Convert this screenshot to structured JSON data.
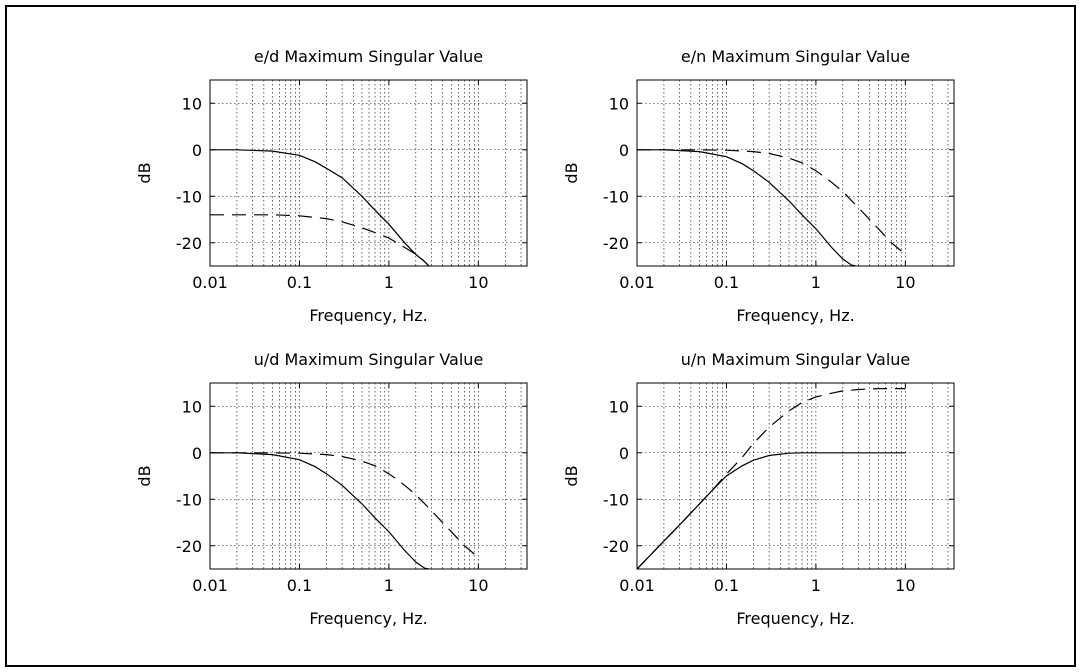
{
  "figure": {
    "border_color": "#000000",
    "background": "#ffffff"
  },
  "chart_data": [
    {
      "type": "line",
      "title": "e/d Maximum Singular Value",
      "xlabel": "Frequency, Hz.",
      "ylabel": "dB",
      "xscale": "log",
      "xlim": [
        0.01,
        35
      ],
      "ylim": [
        -25,
        15
      ],
      "xticks": [
        0.01,
        0.1,
        1,
        10
      ],
      "xticklabels": [
        "0.01",
        "0.1",
        "1",
        "10"
      ],
      "yticks": [
        -20,
        -10,
        0,
        10
      ],
      "yticklabels": [
        "-20",
        "-10",
        "0",
        "10"
      ],
      "grid": true,
      "series": [
        {
          "style": "solid",
          "x": [
            0.01,
            0.02,
            0.05,
            0.1,
            0.15,
            0.2,
            0.3,
            0.5,
            0.7,
            1,
            1.5,
            2,
            2.5,
            2.8
          ],
          "y": [
            0,
            0,
            -0.3,
            -1.2,
            -2.6,
            -4,
            -6,
            -10,
            -13,
            -16,
            -20,
            -22.5,
            -24,
            -25
          ]
        },
        {
          "style": "dashed",
          "x": [
            0.01,
            0.05,
            0.1,
            0.2,
            0.3,
            0.5,
            0.7,
            1,
            1.5,
            2,
            2.5,
            2.8
          ],
          "y": [
            -14,
            -14,
            -14.2,
            -14.8,
            -15.5,
            -16.8,
            -17.8,
            -19,
            -21,
            -22.5,
            -24,
            -25
          ]
        }
      ]
    },
    {
      "type": "line",
      "title": "e/n Maximum Singular Value",
      "xlabel": "Frequency, Hz.",
      "ylabel": "dB",
      "xscale": "log",
      "xlim": [
        0.01,
        35
      ],
      "ylim": [
        -25,
        15
      ],
      "xticks": [
        0.01,
        0.1,
        1,
        10
      ],
      "xticklabels": [
        "0.01",
        "0.1",
        "1",
        "10"
      ],
      "yticks": [
        -20,
        -10,
        0,
        10
      ],
      "yticklabels": [
        "-20",
        "-10",
        "0",
        "10"
      ],
      "grid": true,
      "series": [
        {
          "style": "solid",
          "x": [
            0.01,
            0.02,
            0.05,
            0.1,
            0.15,
            0.2,
            0.3,
            0.5,
            0.7,
            1,
            1.5,
            2,
            2.5,
            2.8
          ],
          "y": [
            0,
            0,
            -0.4,
            -1.5,
            -3,
            -4.5,
            -7,
            -11,
            -14,
            -17,
            -21,
            -23.5,
            -24.8,
            -25
          ]
        },
        {
          "style": "dashed",
          "x": [
            0.01,
            0.05,
            0.1,
            0.2,
            0.3,
            0.5,
            0.7,
            1,
            1.5,
            2,
            3,
            5,
            7,
            10
          ],
          "y": [
            0,
            0,
            -0.1,
            -0.4,
            -0.8,
            -1.8,
            -2.8,
            -4.5,
            -7,
            -9,
            -12.5,
            -17,
            -20,
            -22.5
          ]
        }
      ]
    },
    {
      "type": "line",
      "title": "u/d Maximum Singular Value",
      "xlabel": "Frequency, Hz.",
      "ylabel": "dB",
      "xscale": "log",
      "xlim": [
        0.01,
        35
      ],
      "ylim": [
        -25,
        15
      ],
      "xticks": [
        0.01,
        0.1,
        1,
        10
      ],
      "xticklabels": [
        "0.01",
        "0.1",
        "1",
        "10"
      ],
      "yticks": [
        -20,
        -10,
        0,
        10
      ],
      "yticklabels": [
        "-20",
        "-10",
        "0",
        "10"
      ],
      "grid": true,
      "series": [
        {
          "style": "solid",
          "x": [
            0.01,
            0.02,
            0.05,
            0.1,
            0.15,
            0.2,
            0.3,
            0.5,
            0.7,
            1,
            1.5,
            2,
            2.5,
            2.8
          ],
          "y": [
            0,
            0,
            -0.4,
            -1.5,
            -3,
            -4.5,
            -7,
            -11,
            -14,
            -17,
            -21,
            -23.5,
            -24.8,
            -25
          ]
        },
        {
          "style": "dashed",
          "x": [
            0.01,
            0.05,
            0.1,
            0.2,
            0.3,
            0.5,
            0.7,
            1,
            1.5,
            2,
            3,
            5,
            7,
            10
          ],
          "y": [
            0,
            0,
            -0.1,
            -0.4,
            -0.8,
            -1.8,
            -2.8,
            -4.5,
            -7,
            -9,
            -12.5,
            -17,
            -20,
            -22.5
          ]
        }
      ]
    },
    {
      "type": "line",
      "title": "u/n Maximum Singular Value",
      "xlabel": "Frequency, Hz.",
      "ylabel": "dB",
      "xscale": "log",
      "xlim": [
        0.01,
        35
      ],
      "ylim": [
        -25,
        15
      ],
      "xticks": [
        0.01,
        0.1,
        1,
        10
      ],
      "xticklabels": [
        "0.01",
        "0.1",
        "1",
        "10"
      ],
      "yticks": [
        -20,
        -10,
        0,
        10
      ],
      "yticklabels": [
        "-20",
        "-10",
        "0",
        "10"
      ],
      "grid": true,
      "series": [
        {
          "style": "solid",
          "x": [
            0.01,
            0.02,
            0.03,
            0.05,
            0.07,
            0.1,
            0.15,
            0.2,
            0.3,
            0.5,
            0.7,
            1,
            2,
            5,
            10
          ],
          "y": [
            -25,
            -19,
            -15.5,
            -11,
            -8,
            -5,
            -2.8,
            -1.6,
            -0.6,
            -0.1,
            0,
            0,
            0,
            0,
            0
          ]
        },
        {
          "style": "dashed",
          "x": [
            0.01,
            0.02,
            0.03,
            0.05,
            0.07,
            0.1,
            0.15,
            0.2,
            0.3,
            0.5,
            0.7,
            1,
            1.5,
            2,
            3,
            5,
            10
          ],
          "y": [
            -25,
            -19,
            -15.5,
            -11,
            -8,
            -4.6,
            -1,
            2,
            5.5,
            9,
            10.8,
            12,
            12.8,
            13.3,
            13.6,
            13.8,
            13.8
          ]
        }
      ]
    }
  ]
}
